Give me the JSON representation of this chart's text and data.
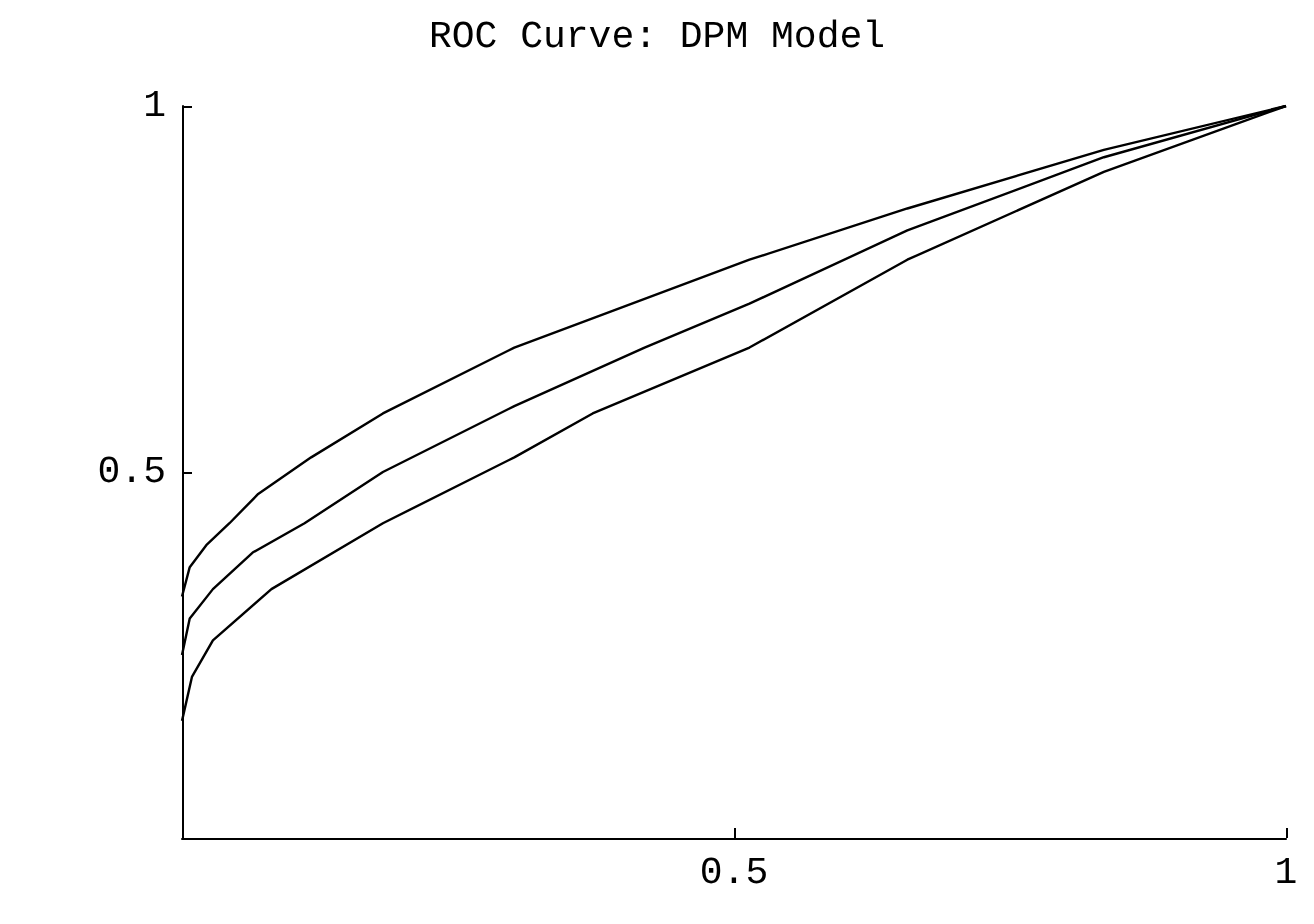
{
  "chart_data": {
    "type": "line",
    "title": "ROC Curve: DPM Model",
    "xlim": [
      0,
      1
    ],
    "ylim": [
      0,
      1
    ],
    "xticks": [
      0.5,
      1
    ],
    "yticks": [
      0.5,
      1
    ],
    "grid": false,
    "marker": "none",
    "line_style": "solid",
    "series": [
      {
        "color": "#000000",
        "x": [
          0,
          0.007,
          0.022,
          0.043,
          0.069,
          0.117,
          0.182,
          0.301,
          0.39,
          0.514,
          0.657,
          0.835,
          1
        ],
        "values": [
          0.33,
          0.37,
          0.4,
          0.43,
          0.47,
          0.52,
          0.58,
          0.67,
          0.72,
          0.79,
          0.86,
          0.94,
          1
        ]
      },
      {
        "color": "#000000",
        "x": [
          0,
          0.007,
          0.028,
          0.064,
          0.111,
          0.182,
          0.301,
          0.419,
          0.514,
          0.657,
          0.835,
          1
        ],
        "values": [
          0.25,
          0.3,
          0.34,
          0.39,
          0.43,
          0.5,
          0.59,
          0.67,
          0.73,
          0.83,
          0.93,
          1
        ]
      },
      {
        "color": "#000000",
        "x": [
          0,
          0.009,
          0.028,
          0.081,
          0.182,
          0.301,
          0.372,
          0.514,
          0.657,
          0.835,
          1
        ],
        "values": [
          0.16,
          0.22,
          0.27,
          0.34,
          0.43,
          0.52,
          0.58,
          0.67,
          0.79,
          0.91,
          1
        ]
      }
    ]
  }
}
